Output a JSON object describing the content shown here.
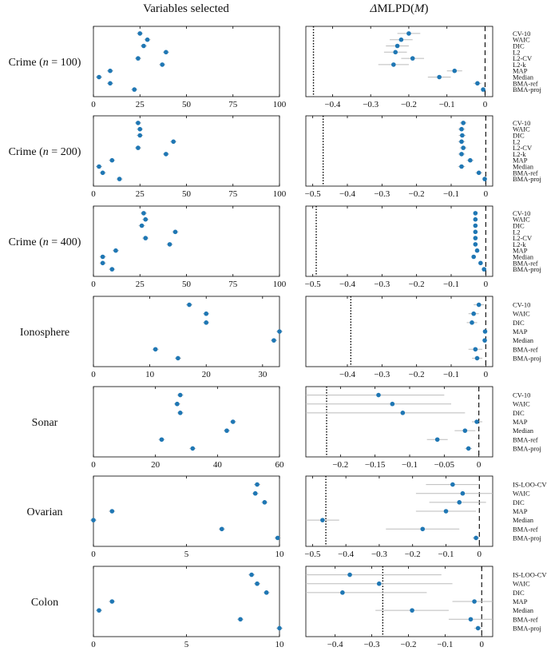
{
  "titles": {
    "left": "Variables selected",
    "right_prefix": "Δ",
    "right_main": "MLPD(",
    "right_var": "M",
    "right_suffix": ")"
  },
  "colors": {
    "point": "#1f77b4",
    "axis": "#000000",
    "error": "#bbbbbb"
  },
  "rows": [
    {
      "label": "Crime (n = 100)",
      "label_pre": "Crime (",
      "label_n": "n",
      "label_post": " = 100)",
      "methods": [
        "CV-10",
        "WAIC",
        "DIC",
        "L2",
        "L2-CV",
        "L2-k",
        "MAP",
        "Median",
        "BMA-ref",
        "BMA-proj"
      ],
      "left": {
        "xlim": [
          0,
          100
        ],
        "ticks": [
          "0",
          "25",
          "50",
          "75",
          "100"
        ],
        "tick_values": [
          0,
          25,
          50,
          75,
          100
        ],
        "values": [
          25,
          29,
          27,
          39,
          24,
          37,
          9,
          3,
          9,
          22
        ]
      },
      "right": {
        "xlim": [
          -0.47,
          0.02
        ],
        "ticks": [
          "−0.4",
          "−0.3",
          "−0.2",
          "−0.1",
          "0"
        ],
        "tick_values": [
          -0.4,
          -0.3,
          -0.2,
          -0.1,
          0
        ],
        "values": [
          -0.2,
          -0.22,
          -0.23,
          -0.235,
          -0.19,
          -0.24,
          -0.08,
          -0.12,
          -0.02,
          -0.005
        ],
        "err_low": [
          -0.23,
          -0.25,
          -0.26,
          -0.265,
          -0.22,
          -0.28,
          -0.1,
          -0.15,
          -0.03,
          -0.01
        ],
        "err_high": [
          -0.17,
          -0.19,
          -0.2,
          -0.205,
          -0.16,
          -0.2,
          -0.06,
          -0.09,
          -0.01,
          0.0
        ],
        "dotted_x": -0.45,
        "dashed_x": 0
      }
    },
    {
      "label": "Crime (n = 200)",
      "label_pre": "Crime (",
      "label_n": "n",
      "label_post": " = 200)",
      "methods": [
        "CV-10",
        "WAIC",
        "DIC",
        "L2",
        "L2-CV",
        "L2-k",
        "MAP",
        "Median",
        "BMA-ref",
        "BMA-proj"
      ],
      "left": {
        "xlim": [
          0,
          100
        ],
        "ticks": [
          "0",
          "25",
          "50",
          "75",
          "100"
        ],
        "tick_values": [
          0,
          25,
          50,
          75,
          100
        ],
        "values": [
          24,
          25,
          25,
          43,
          24,
          39,
          10,
          3,
          5,
          14
        ]
      },
      "right": {
        "xlim": [
          -0.52,
          0.02
        ],
        "ticks": [
          "−0.5",
          "−0.4",
          "−0.3",
          "−0.2",
          "−0.1",
          "0"
        ],
        "tick_values": [
          -0.5,
          -0.4,
          -0.3,
          -0.2,
          -0.1,
          0
        ],
        "values": [
          -0.065,
          -0.07,
          -0.068,
          -0.07,
          -0.065,
          -0.07,
          -0.045,
          -0.07,
          -0.02,
          -0.003
        ],
        "err_low": [
          -0.075,
          -0.08,
          -0.078,
          -0.08,
          -0.075,
          -0.08,
          -0.055,
          -0.08,
          -0.03,
          -0.008
        ],
        "err_high": [
          -0.055,
          -0.06,
          -0.058,
          -0.06,
          -0.055,
          -0.06,
          -0.035,
          -0.06,
          -0.01,
          0.0
        ],
        "dotted_x": -0.47,
        "dashed_x": 0
      }
    },
    {
      "label": "Crime (n = 400)",
      "label_pre": "Crime (",
      "label_n": "n",
      "label_post": " = 400)",
      "methods": [
        "CV-10",
        "WAIC",
        "DIC",
        "L2",
        "L2-CV",
        "L2-k",
        "MAP",
        "Median",
        "BMA-ref",
        "BMA-proj"
      ],
      "left": {
        "xlim": [
          0,
          100
        ],
        "ticks": [
          "0",
          "25",
          "50",
          "75",
          "100"
        ],
        "tick_values": [
          0,
          25,
          50,
          75,
          100
        ],
        "values": [
          27,
          28,
          26,
          44,
          28,
          41,
          12,
          5,
          5,
          10
        ]
      },
      "right": {
        "xlim": [
          -0.52,
          0.02
        ],
        "ticks": [
          "−0.5",
          "−0.4",
          "−0.3",
          "−0.2",
          "−0.1",
          "0"
        ],
        "tick_values": [
          -0.5,
          -0.4,
          -0.3,
          -0.2,
          -0.1,
          0
        ],
        "values": [
          -0.03,
          -0.03,
          -0.03,
          -0.03,
          -0.03,
          -0.03,
          -0.025,
          -0.035,
          -0.015,
          -0.005
        ],
        "err_low": [
          -0.035,
          -0.035,
          -0.035,
          -0.035,
          -0.035,
          -0.035,
          -0.03,
          -0.04,
          -0.02,
          -0.008
        ],
        "err_high": [
          -0.025,
          -0.025,
          -0.025,
          -0.025,
          -0.025,
          -0.025,
          -0.02,
          -0.03,
          -0.01,
          0.0
        ],
        "dotted_x": -0.49,
        "dashed_x": 0
      }
    },
    {
      "label": "Ionosphere",
      "label_pre": "Ionosphere",
      "label_n": "",
      "label_post": "",
      "methods": [
        "CV-10",
        "WAIC",
        "DIC",
        "MAP",
        "Median",
        "BMA-ref",
        "BMA-proj"
      ],
      "left": {
        "xlim": [
          0,
          33
        ],
        "ticks": [
          "0",
          "10",
          "20",
          "30"
        ],
        "tick_values": [
          0,
          10,
          20,
          30
        ],
        "values": [
          17,
          20,
          20,
          33,
          32,
          11,
          15
        ]
      },
      "right": {
        "xlim": [
          -0.52,
          0.02
        ],
        "ticks": [
          "−0.4",
          "−0.3",
          "−0.2",
          "−0.1",
          "0"
        ],
        "tick_values": [
          -0.4,
          -0.3,
          -0.2,
          -0.1,
          0
        ],
        "values": [
          -0.02,
          -0.035,
          -0.04,
          -0.002,
          -0.003,
          -0.03,
          -0.025
        ],
        "err_low": [
          -0.035,
          -0.05,
          -0.055,
          -0.005,
          -0.006,
          -0.05,
          -0.04
        ],
        "err_high": [
          -0.005,
          -0.02,
          -0.025,
          0.0,
          0.0,
          -0.01,
          -0.01
        ],
        "dotted_x": -0.39,
        "dashed_x": 0
      }
    },
    {
      "label": "Sonar",
      "label_pre": "Sonar",
      "label_n": "",
      "label_post": "",
      "methods": [
        "CV-10",
        "WAIC",
        "DIC",
        "MAP",
        "Median",
        "BMA-ref",
        "BMA-proj"
      ],
      "left": {
        "xlim": [
          0,
          60
        ],
        "ticks": [
          "0",
          "20",
          "40",
          "60"
        ],
        "tick_values": [
          0,
          20,
          40,
          60
        ],
        "values": [
          28,
          27,
          28,
          45,
          43,
          22,
          32
        ]
      },
      "right": {
        "xlim": [
          -0.25,
          0.02
        ],
        "ticks": [
          "−0.2",
          "−0.15",
          "−0.1",
          "−0.05",
          "0"
        ],
        "tick_values": [
          -0.2,
          -0.15,
          -0.1,
          -0.05,
          0
        ],
        "values": [
          -0.145,
          -0.125,
          -0.11,
          -0.003,
          -0.02,
          -0.06,
          -0.015
        ],
        "err_low": [
          -0.25,
          -0.25,
          -0.25,
          -0.01,
          -0.035,
          -0.075,
          -0.02
        ],
        "err_high": [
          -0.05,
          -0.04,
          -0.02,
          0.005,
          -0.005,
          -0.045,
          -0.01
        ],
        "dotted_x": -0.22,
        "dashed_x": 0
      }
    },
    {
      "label": "Ovarian",
      "label_pre": "Ovarian",
      "label_n": "",
      "label_post": "",
      "methods": [
        "IS-LOO-CV",
        "WAIC",
        "DIC",
        "MAP",
        "Median",
        "BMA-ref",
        "BMA-proj"
      ],
      "left": {
        "xlim": [
          0,
          10
        ],
        "ticks": [
          "0",
          "5",
          "10"
        ],
        "tick_values": [
          0,
          5,
          10
        ],
        "values": [
          8.8,
          8.7,
          9.2,
          1,
          0,
          6.9,
          9.9
        ]
      },
      "right": {
        "xlim": [
          -0.52,
          0.04
        ],
        "ticks": [
          "−0.5",
          "−0.4",
          "−0.3",
          "−0.2",
          "−0.1",
          "0"
        ],
        "tick_values": [
          -0.5,
          -0.4,
          -0.3,
          -0.2,
          -0.1,
          0
        ],
        "values": [
          -0.08,
          -0.05,
          -0.06,
          -0.1,
          -0.47,
          -0.17,
          -0.01
        ],
        "err_low": [
          -0.16,
          -0.19,
          -0.15,
          -0.19,
          -0.52,
          -0.28,
          -0.02
        ],
        "err_high": [
          0.0,
          0.04,
          0.02,
          -0.01,
          -0.42,
          -0.06,
          0.0
        ],
        "dotted_x": -0.46,
        "dashed_x": 0
      }
    },
    {
      "label": "Colon",
      "label_pre": "Colon",
      "label_n": "",
      "label_post": "",
      "methods": [
        "IS-LOO-CV",
        "WAIC",
        "DIC",
        "MAP",
        "Median",
        "BMA-ref",
        "BMA-proj"
      ],
      "left": {
        "xlim": [
          0,
          10
        ],
        "ticks": [
          "0",
          "5",
          "10"
        ],
        "tick_values": [
          0,
          5,
          10
        ],
        "values": [
          8.5,
          8.8,
          9.3,
          1,
          0.3,
          7.9,
          10
        ]
      },
      "right": {
        "xlim": [
          -0.48,
          0.03
        ],
        "ticks": [
          "−0.4",
          "−0.3",
          "−0.2",
          "−0.1",
          "0"
        ],
        "tick_values": [
          -0.4,
          -0.3,
          -0.2,
          -0.1,
          0
        ],
        "values": [
          -0.36,
          -0.28,
          -0.38,
          -0.02,
          -0.19,
          -0.03,
          -0.01
        ],
        "err_low": [
          -0.48,
          -0.48,
          -0.48,
          -0.08,
          -0.29,
          -0.09,
          -0.02
        ],
        "err_high": [
          -0.11,
          -0.08,
          -0.15,
          0.03,
          -0.09,
          0.03,
          0.0
        ],
        "dotted_x": -0.27,
        "dashed_x": 0
      }
    }
  ],
  "chart_data": {
    "type": "scatter",
    "title": "Variables selected / ΔMLPD(M)",
    "panels": [
      "Crime (n = 100)",
      "Crime (n = 200)",
      "Crime (n = 400)",
      "Ionosphere",
      "Sonar",
      "Ovarian",
      "Colon"
    ],
    "note": "Each row: left panel shows number of variables selected per method; right panel shows ΔMLPD(M) with error bars per method. Values are in rows[].left.values and rows[].right.values."
  }
}
